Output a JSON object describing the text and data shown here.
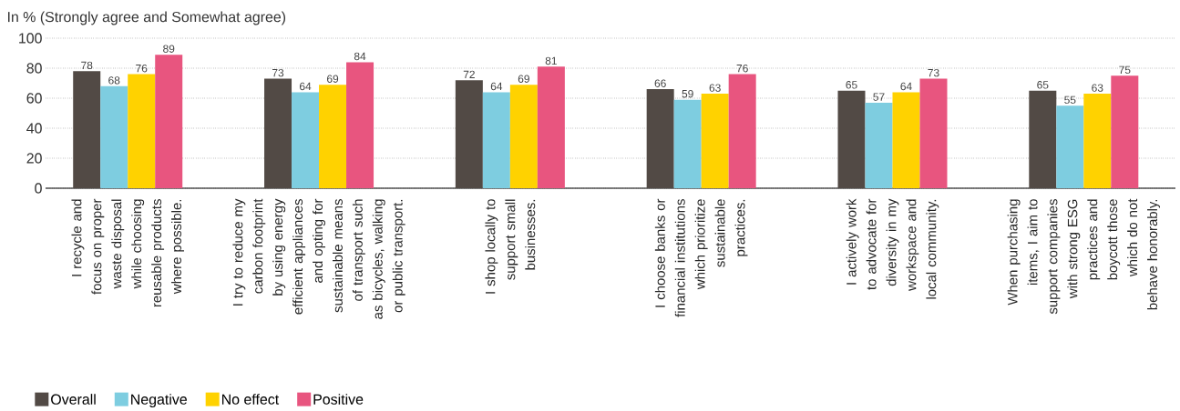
{
  "chart_data": {
    "type": "bar",
    "title": "In % (Strongly agree and Somewhat agree)",
    "categories": [
      "I recycle and focus on proper waste disposal while choosing reusable products where possible.",
      "I try to reduce my carbon footprint by using energy efficient appliances and opting for sustainable means of transport such as bicycles, walking or public transport.",
      "I shop locally to support small businesses.",
      "I choose banks or financial institutions which prioritize sustainable practices.",
      "I actively work to advocate for diversity in my workspace and local community.",
      "When purchasing items, I aim to support companies with strong ESG practices and boycott those which do not behave honorably."
    ],
    "series": [
      {
        "name": "Overall",
        "color": "#524a45",
        "values": [
          78,
          73,
          72,
          66,
          65,
          65
        ]
      },
      {
        "name": "Negative",
        "color": "#7ecde0",
        "values": [
          68,
          64,
          64,
          59,
          57,
          55
        ]
      },
      {
        "name": "No effect",
        "color": "#ffd200",
        "values": [
          76,
          69,
          69,
          63,
          64,
          63
        ]
      },
      {
        "name": "Positive",
        "color": "#e8557f",
        "values": [
          89,
          84,
          81,
          76,
          73,
          75
        ]
      }
    ],
    "ylim": [
      0,
      100
    ],
    "yticks": [
      0,
      20,
      40,
      60,
      80,
      100
    ],
    "grid": "y",
    "legend": "bottom left",
    "data_labels": true
  }
}
